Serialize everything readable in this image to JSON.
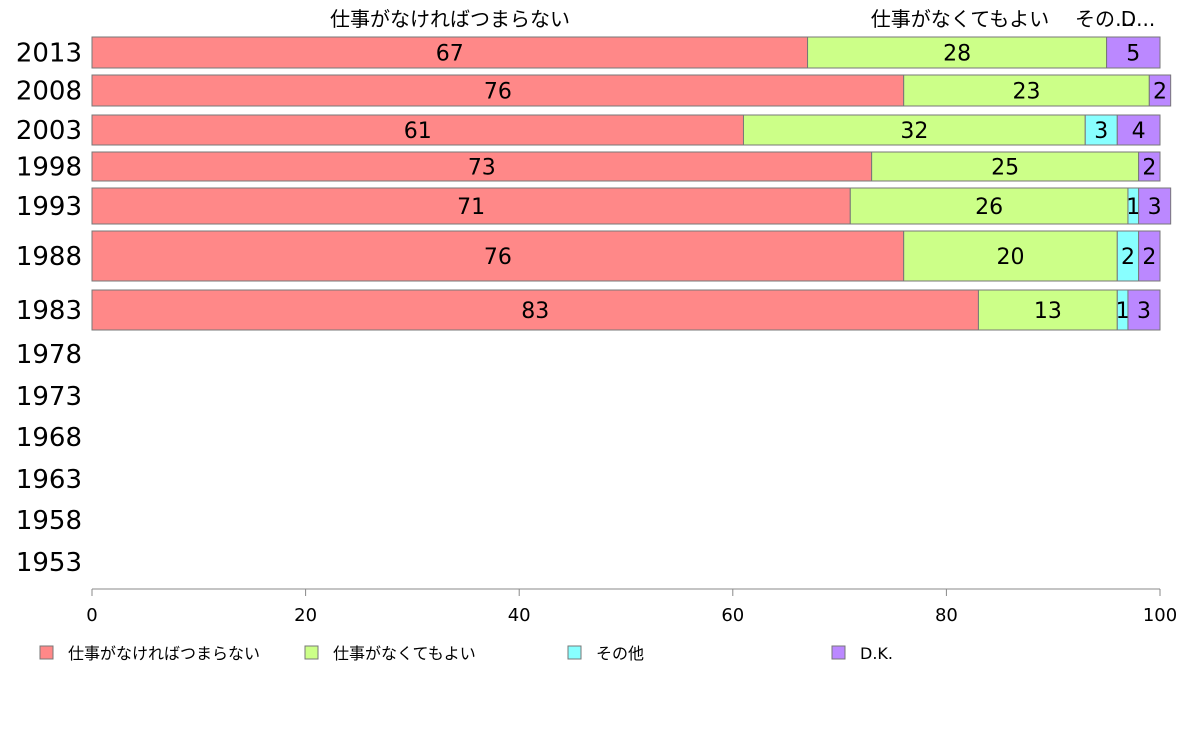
{
  "chart_data": {
    "type": "bar",
    "orientation": "horizontal",
    "stacked": true,
    "categories": [
      "2013",
      "2008",
      "2003",
      "1998",
      "1993",
      "1988",
      "1983",
      "1978",
      "1973",
      "1968",
      "1963",
      "1958",
      "1953"
    ],
    "series": [
      {
        "name": "仕事がなければつまらない",
        "color": "#ff8888",
        "values": [
          67,
          76,
          61,
          73,
          71,
          76,
          83,
          null,
          null,
          null,
          null,
          null,
          null
        ]
      },
      {
        "name": "仕事がなくてもよい",
        "color": "#ccff88",
        "values": [
          28,
          23,
          32,
          25,
          26,
          20,
          13,
          null,
          null,
          null,
          null,
          null,
          null
        ]
      },
      {
        "name": "その他",
        "color": "#88ffff",
        "values": [
          0,
          0,
          3,
          0,
          1,
          2,
          1,
          null,
          null,
          null,
          null,
          null,
          null
        ]
      },
      {
        "name": "D.K.",
        "color": "#bb88ff",
        "values": [
          5,
          2,
          4,
          2,
          3,
          2,
          3,
          null,
          null,
          null,
          null,
          null,
          null
        ]
      }
    ],
    "top_labels": [
      "仕事がなければつまらない",
      "仕事がなくてもよい",
      "その…",
      "D..."
    ],
    "xticks": [
      "0",
      "20",
      "40",
      "60",
      "80",
      "100"
    ],
    "xlim": [
      0,
      100
    ],
    "legend_position": "bottom"
  }
}
